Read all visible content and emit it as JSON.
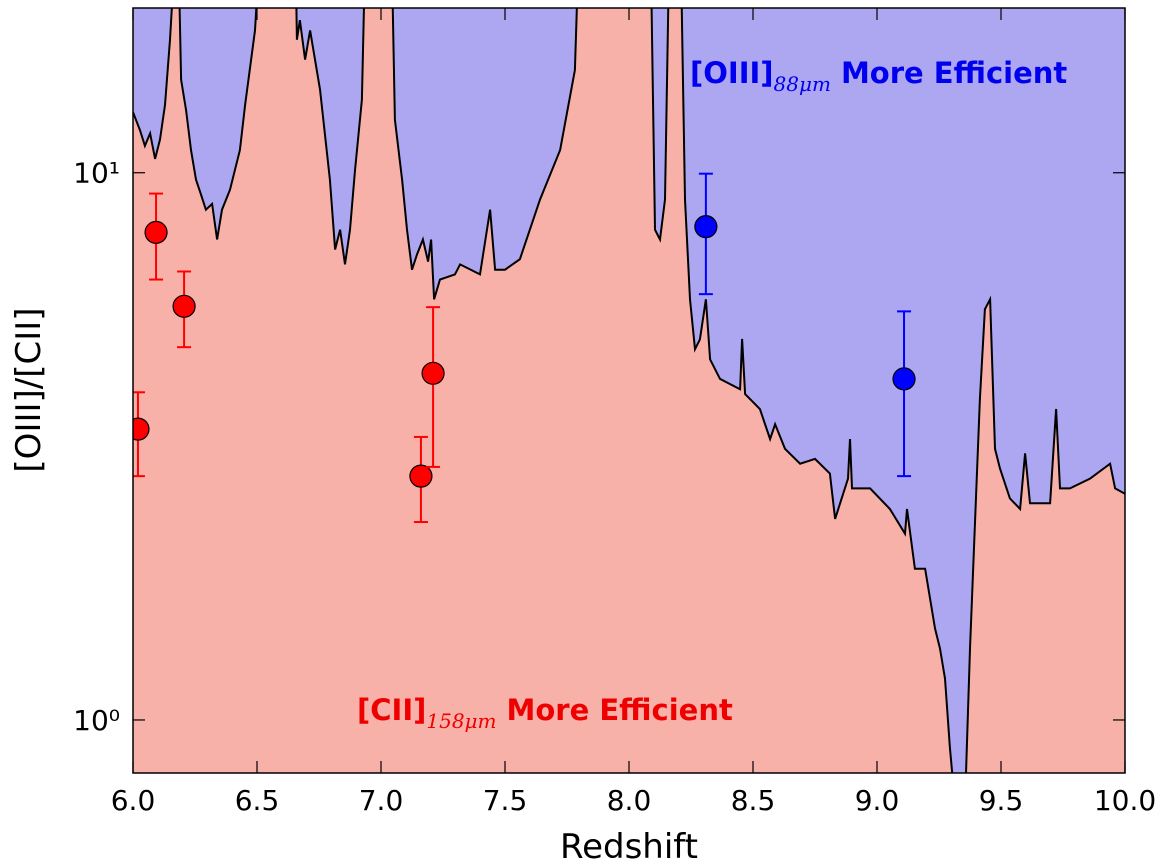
{
  "chart_data": {
    "type": "line",
    "xlabel": "Redshift",
    "ylabel": "[OIII]/[CII]",
    "xlim": [
      6.0,
      10.0
    ],
    "ylim": [
      0.8,
      20
    ],
    "ylog": true,
    "xticks": [
      {
        "value": 6.0,
        "label": "6.0"
      },
      {
        "value": 6.5,
        "label": "6.5"
      },
      {
        "value": 7.0,
        "label": "7.0"
      },
      {
        "value": 7.5,
        "label": "7.5"
      },
      {
        "value": 8.0,
        "label": "8.0"
      },
      {
        "value": 8.5,
        "label": "8.5"
      },
      {
        "value": 9.0,
        "label": "9.0"
      },
      {
        "value": 9.5,
        "label": "9.5"
      },
      {
        "value": 10.0,
        "label": "10.0"
      }
    ],
    "yticks": [
      {
        "value": 1,
        "label": "10⁰"
      },
      {
        "value": 10,
        "label": "10¹"
      }
    ],
    "fill_above": "#ada6f0",
    "fill_below": "#f8b1a9",
    "annotations": [
      {
        "text": "[OIII]",
        "sub": "88μm",
        "rest": "More Efficient",
        "color": "#0000ee"
      },
      {
        "text": "[CII]",
        "sub": "158μm",
        "rest": "More Efficient",
        "color": "#ee0000"
      }
    ],
    "series": [
      {
        "type": "area",
        "color": "#000000",
        "x": [
          6.0,
          6.028,
          6.048,
          6.069,
          6.089,
          6.109,
          6.129,
          6.149,
          6.169,
          6.18,
          6.194,
          6.214,
          6.234,
          6.254,
          6.274,
          6.294,
          6.319,
          6.339,
          6.359,
          6.391,
          6.431,
          6.452,
          6.492,
          6.52,
          6.653,
          6.661,
          6.673,
          6.694,
          6.714,
          6.754,
          6.794,
          6.815,
          6.835,
          6.855,
          6.875,
          6.895,
          6.923,
          6.94,
          7.04,
          7.056,
          7.085,
          7.105,
          7.125,
          7.145,
          7.169,
          7.19,
          7.202,
          7.214,
          7.238,
          7.298,
          7.319,
          7.399,
          7.44,
          7.46,
          7.5,
          7.56,
          7.641,
          7.722,
          7.782,
          7.802,
          8.085,
          8.105,
          8.125,
          8.145,
          8.165,
          8.206,
          8.226,
          8.246,
          8.266,
          8.286,
          8.31,
          8.327,
          8.367,
          8.448,
          8.456,
          8.468,
          8.528,
          8.569,
          8.589,
          8.629,
          8.69,
          8.75,
          8.81,
          8.831,
          8.883,
          8.891,
          8.899,
          8.972,
          9.052,
          9.113,
          9.121,
          9.153,
          9.194,
          9.234,
          9.254,
          9.274,
          9.294,
          9.315,
          9.355,
          9.375,
          9.415,
          9.435,
          9.456,
          9.476,
          9.496,
          9.536,
          9.577,
          9.597,
          9.617,
          9.698,
          9.722,
          9.738,
          9.778,
          9.859,
          9.94,
          9.96,
          10.0
        ],
        "values": [
          12.9,
          11.97,
          11.2,
          11.8,
          10.6,
          11.5,
          13.3,
          17.5,
          25,
          30,
          14.8,
          13.0,
          11.0,
          9.71,
          9.12,
          8.56,
          8.77,
          7.55,
          8.56,
          9.31,
          11.0,
          13.3,
          18.2,
          30,
          30,
          17.5,
          19,
          16.1,
          18.2,
          14.2,
          9.71,
          7.24,
          7.87,
          6.8,
          7.87,
          10.1,
          13.6,
          30,
          30,
          12.5,
          9.71,
          7.87,
          6.65,
          7.09,
          7.55,
          6.88,
          7.55,
          5.87,
          6.38,
          6.52,
          6.8,
          6.52,
          8.56,
          6.65,
          6.65,
          6.95,
          8.93,
          11.0,
          15.4,
          30,
          30,
          7.87,
          7.55,
          8.93,
          30,
          30,
          8.93,
          5.87,
          4.76,
          4.96,
          5.87,
          4.56,
          4.2,
          4.02,
          4.97,
          3.94,
          3.7,
          3.26,
          3.47,
          3.13,
          2.94,
          3.0,
          2.82,
          2.33,
          2.76,
          3.26,
          2.65,
          2.65,
          2.43,
          2.19,
          2.43,
          1.89,
          1.89,
          1.47,
          1.35,
          1.19,
          0.89,
          0.7,
          0.7,
          1.35,
          3.86,
          5.63,
          5.87,
          3.13,
          2.88,
          2.54,
          2.43,
          3.07,
          2.49,
          2.49,
          3.7,
          2.65,
          2.65,
          2.76,
          2.94,
          2.65,
          2.59
        ]
      },
      {
        "type": "errorbar",
        "color": "#ff0000",
        "x": [
          6.02,
          6.093,
          6.206,
          7.161,
          7.21
        ],
        "values": [
          3.4,
          7.78,
          5.7,
          2.79,
          4.3
        ],
        "lower": [
          2.79,
          6.38,
          4.8,
          2.3,
          2.9
        ],
        "upper": [
          3.97,
          9.16,
          6.6,
          3.29,
          5.68
        ]
      },
      {
        "type": "errorbar",
        "color": "#0000ff",
        "x": [
          8.31,
          9.109
        ],
        "values": [
          7.97,
          4.2
        ],
        "lower": [
          6.0,
          2.79
        ],
        "upper": [
          9.96,
          5.58
        ]
      }
    ]
  }
}
